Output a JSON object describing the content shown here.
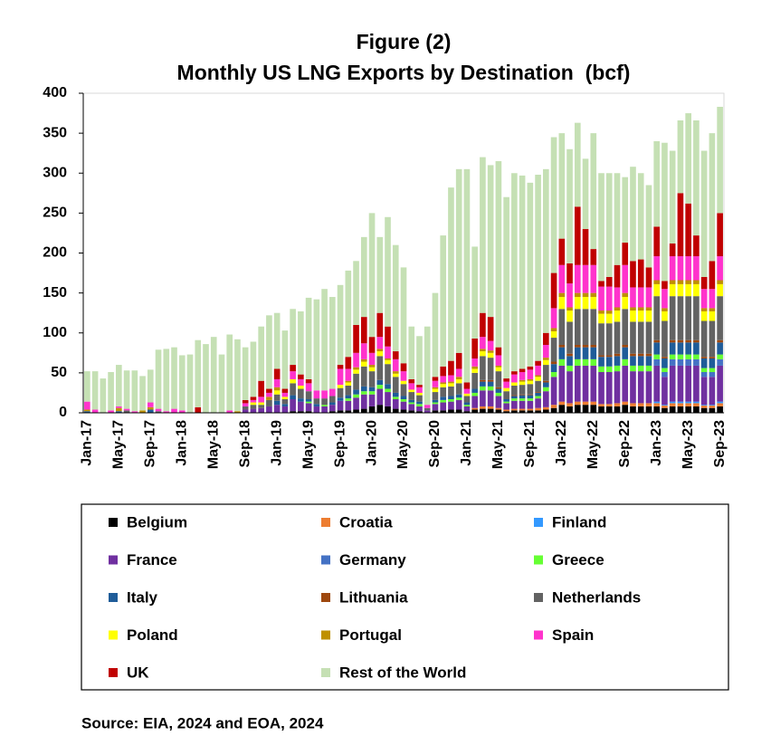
{
  "chart_data": {
    "type": "stacked_bar",
    "title": "Figure (2)",
    "subtitle": "Monthly US LNG Exports by Destination  (bcf)",
    "source": "Source: EIA, 2024 and EOA, 2024",
    "ylim": [
      0,
      400
    ],
    "yticks": [
      0,
      50,
      100,
      150,
      200,
      250,
      300,
      350,
      400
    ],
    "categories": [
      "Jan-17",
      null,
      null,
      null,
      "May-17",
      null,
      null,
      null,
      "Sep-17",
      null,
      null,
      null,
      "Jan-18",
      null,
      null,
      null,
      "May-18",
      null,
      null,
      null,
      "Sep-18",
      null,
      null,
      null,
      "Jan-19",
      null,
      null,
      null,
      "May-19",
      null,
      null,
      null,
      "Sep-19",
      null,
      null,
      null,
      "Jan-20",
      null,
      null,
      null,
      "May-20",
      null,
      null,
      null,
      "Sep-20",
      null,
      null,
      null,
      "Jan-21",
      null,
      null,
      null,
      "May-21",
      null,
      null,
      null,
      "Sep-21",
      null,
      null,
      null,
      "Jan-22",
      null,
      null,
      null,
      "May-22",
      null,
      null,
      null,
      "Sep-22",
      null,
      null,
      null,
      "Jan-23",
      null,
      null,
      null,
      "May-23",
      null,
      null,
      null,
      "Sep-23"
    ],
    "series": [
      {
        "name": "Belgium",
        "color": "#000000",
        "values": [
          0,
          0,
          0,
          0,
          0,
          0,
          0,
          0,
          0,
          0,
          0,
          0,
          0,
          0,
          0,
          0,
          0,
          0,
          0,
          0,
          0,
          0,
          0,
          0,
          0,
          0,
          2,
          2,
          2,
          0,
          0,
          2,
          3,
          3,
          4,
          5,
          8,
          10,
          8,
          5,
          4,
          3,
          2,
          0,
          3,
          3,
          4,
          4,
          2,
          4,
          5,
          5,
          4,
          2,
          3,
          3,
          3,
          3,
          4,
          6,
          10,
          8,
          10,
          10,
          10,
          8,
          8,
          8,
          10,
          8,
          8,
          8,
          8,
          6,
          8,
          8,
          8,
          8,
          6,
          6,
          8
        ]
      },
      {
        "name": "Croatia",
        "color": "#ED7D31",
        "values": [
          0,
          0,
          0,
          0,
          0,
          0,
          0,
          0,
          0,
          0,
          0,
          0,
          0,
          0,
          0,
          0,
          0,
          0,
          0,
          0,
          0,
          0,
          0,
          0,
          0,
          0,
          0,
          0,
          0,
          0,
          0,
          0,
          0,
          0,
          0,
          0,
          0,
          0,
          0,
          0,
          0,
          0,
          0,
          0,
          0,
          0,
          0,
          0,
          0,
          2,
          3,
          3,
          2,
          2,
          2,
          2,
          2,
          3,
          3,
          4,
          4,
          4,
          4,
          4,
          4,
          3,
          3,
          4,
          4,
          4,
          4,
          4,
          4,
          3,
          4,
          4,
          4,
          4,
          3,
          3,
          4
        ]
      },
      {
        "name": "Finland",
        "color": "#3399FF",
        "values": [
          0,
          0,
          0,
          0,
          0,
          0,
          0,
          0,
          0,
          0,
          0,
          0,
          0,
          0,
          0,
          0,
          0,
          0,
          0,
          0,
          0,
          0,
          0,
          0,
          0,
          0,
          0,
          0,
          0,
          0,
          0,
          0,
          0,
          0,
          0,
          0,
          0,
          0,
          0,
          0,
          0,
          0,
          0,
          0,
          0,
          0,
          0,
          0,
          0,
          0,
          0,
          0,
          0,
          0,
          0,
          0,
          0,
          0,
          0,
          0,
          0,
          0,
          0,
          0,
          0,
          0,
          0,
          0,
          0,
          0,
          0,
          0,
          2,
          1,
          2,
          2,
          2,
          2,
          1,
          1,
          2
        ]
      },
      {
        "name": "France",
        "color": "#7030A0",
        "values": [
          0,
          0,
          0,
          0,
          0,
          0,
          0,
          0,
          0,
          0,
          0,
          0,
          0,
          0,
          0,
          0,
          0,
          0,
          0,
          0,
          4,
          5,
          6,
          8,
          10,
          8,
          15,
          12,
          10,
          8,
          8,
          8,
          12,
          12,
          15,
          18,
          15,
          20,
          18,
          12,
          10,
          8,
          6,
          3,
          8,
          10,
          10,
          12,
          6,
          15,
          20,
          20,
          15,
          8,
          10,
          10,
          10,
          12,
          20,
          35,
          45,
          40,
          45,
          45,
          45,
          40,
          40,
          40,
          45,
          40,
          40,
          40,
          45,
          35,
          45,
          45,
          45,
          45,
          35,
          35,
          45
        ]
      },
      {
        "name": "Germany",
        "color": "#4472C4",
        "values": [
          0,
          0,
          0,
          0,
          0,
          0,
          0,
          0,
          0,
          0,
          0,
          0,
          0,
          0,
          0,
          0,
          0,
          0,
          0,
          0,
          0,
          0,
          0,
          0,
          0,
          0,
          0,
          0,
          0,
          0,
          0,
          0,
          0,
          0,
          0,
          0,
          0,
          0,
          0,
          0,
          0,
          0,
          0,
          0,
          0,
          0,
          0,
          0,
          0,
          0,
          0,
          0,
          0,
          0,
          0,
          0,
          0,
          0,
          0,
          0,
          0,
          0,
          0,
          0,
          0,
          0,
          0,
          0,
          0,
          0,
          0,
          0,
          8,
          6,
          8,
          8,
          8,
          8,
          6,
          6,
          8
        ]
      },
      {
        "name": "Greece",
        "color": "#66FF33",
        "values": [
          0,
          0,
          0,
          0,
          0,
          0,
          0,
          0,
          0,
          0,
          0,
          0,
          0,
          0,
          0,
          0,
          0,
          0,
          0,
          0,
          0,
          0,
          0,
          0,
          0,
          0,
          0,
          0,
          2,
          0,
          2,
          0,
          0,
          3,
          4,
          4,
          4,
          5,
          4,
          3,
          3,
          2,
          3,
          0,
          2,
          3,
          3,
          3,
          2,
          4,
          5,
          5,
          4,
          2,
          3,
          3,
          3,
          3,
          5,
          6,
          8,
          7,
          8,
          8,
          8,
          7,
          7,
          7,
          8,
          7,
          7,
          7,
          6,
          5,
          6,
          6,
          6,
          6,
          5,
          5,
          6
        ]
      },
      {
        "name": "Italy",
        "color": "#1F5C99",
        "values": [
          2,
          0,
          0,
          0,
          2,
          0,
          0,
          0,
          4,
          0,
          0,
          0,
          0,
          0,
          0,
          0,
          0,
          0,
          0,
          0,
          0,
          0,
          0,
          0,
          5,
          3,
          5,
          4,
          3,
          3,
          0,
          3,
          4,
          4,
          6,
          6,
          5,
          6,
          6,
          5,
          4,
          3,
          3,
          0,
          3,
          4,
          4,
          4,
          3,
          5,
          6,
          6,
          5,
          3,
          3,
          4,
          4,
          4,
          6,
          10,
          15,
          12,
          15,
          15,
          15,
          12,
          12,
          12,
          15,
          12,
          12,
          12,
          15,
          12,
          15,
          15,
          15,
          15,
          12,
          12,
          15
        ]
      },
      {
        "name": "Lithuania",
        "color": "#9E480E",
        "values": [
          0,
          0,
          0,
          0,
          0,
          0,
          0,
          0,
          0,
          0,
          0,
          0,
          0,
          0,
          0,
          0,
          0,
          0,
          0,
          0,
          0,
          0,
          0,
          0,
          0,
          0,
          0,
          0,
          0,
          0,
          0,
          0,
          0,
          0,
          0,
          0,
          0,
          0,
          0,
          0,
          0,
          0,
          0,
          0,
          0,
          0,
          0,
          0,
          0,
          0,
          2,
          2,
          2,
          0,
          1,
          1,
          1,
          1,
          2,
          3,
          3,
          3,
          3,
          3,
          3,
          2,
          2,
          3,
          3,
          3,
          3,
          3,
          3,
          2,
          3,
          3,
          3,
          3,
          2,
          2,
          3
        ]
      },
      {
        "name": "Netherlands",
        "color": "#636363",
        "values": [
          0,
          0,
          0,
          0,
          0,
          3,
          0,
          0,
          0,
          2,
          0,
          0,
          0,
          0,
          0,
          0,
          0,
          0,
          0,
          0,
          4,
          5,
          4,
          8,
          8,
          6,
          15,
          12,
          10,
          7,
          8,
          8,
          12,
          12,
          20,
          25,
          20,
          30,
          25,
          20,
          15,
          10,
          8,
          3,
          10,
          12,
          12,
          14,
          8,
          20,
          30,
          28,
          20,
          10,
          12,
          12,
          13,
          14,
          20,
          30,
          45,
          40,
          45,
          45,
          45,
          40,
          40,
          40,
          45,
          40,
          40,
          40,
          55,
          45,
          55,
          55,
          55,
          55,
          45,
          45,
          55
        ]
      },
      {
        "name": "Poland",
        "color": "#FFFF00",
        "values": [
          0,
          0,
          0,
          0,
          0,
          0,
          0,
          0,
          0,
          0,
          0,
          0,
          0,
          0,
          0,
          0,
          0,
          0,
          0,
          0,
          0,
          3,
          3,
          0,
          5,
          3,
          5,
          4,
          0,
          0,
          0,
          0,
          4,
          4,
          5,
          6,
          5,
          6,
          5,
          4,
          4,
          3,
          3,
          0,
          4,
          4,
          4,
          5,
          3,
          5,
          6,
          6,
          5,
          4,
          4,
          4,
          4,
          5,
          6,
          8,
          15,
          14,
          15,
          15,
          15,
          12,
          12,
          14,
          15,
          14,
          14,
          14,
          15,
          12,
          15,
          15,
          15,
          15,
          12,
          12,
          15
        ]
      },
      {
        "name": "Portugal",
        "color": "#BF9000",
        "values": [
          2,
          0,
          0,
          0,
          4,
          0,
          0,
          3,
          3,
          0,
          0,
          0,
          0,
          0,
          0,
          0,
          0,
          0,
          0,
          2,
          0,
          0,
          0,
          4,
          4,
          0,
          0,
          0,
          0,
          0,
          0,
          0,
          0,
          2,
          3,
          3,
          3,
          3,
          2,
          3,
          0,
          0,
          0,
          0,
          2,
          2,
          2,
          3,
          0,
          3,
          3,
          3,
          2,
          0,
          0,
          2,
          2,
          2,
          3,
          4,
          5,
          4,
          5,
          5,
          5,
          4,
          4,
          4,
          5,
          4,
          4,
          4,
          5,
          4,
          5,
          5,
          5,
          5,
          4,
          4,
          5
        ]
      },
      {
        "name": "Spain",
        "color": "#FF33CC",
        "values": [
          10,
          4,
          0,
          3,
          2,
          2,
          2,
          0,
          6,
          3,
          2,
          5,
          3,
          0,
          0,
          0,
          0,
          0,
          3,
          0,
          4,
          3,
          7,
          5,
          10,
          5,
          10,
          8,
          10,
          10,
          10,
          9,
          20,
          15,
          18,
          20,
          15,
          15,
          15,
          15,
          12,
          8,
          7,
          4,
          8,
          8,
          8,
          10,
          6,
          10,
          15,
          12,
          13,
          8,
          10,
          10,
          12,
          12,
          16,
          25,
          35,
          30,
          35,
          35,
          35,
          30,
          30,
          25,
          35,
          25,
          25,
          25,
          30,
          24,
          30,
          30,
          30,
          30,
          24,
          24,
          30
        ]
      },
      {
        "name": "UK",
        "color": "#C00000",
        "values": [
          0,
          0,
          0,
          0,
          0,
          0,
          0,
          0,
          0,
          0,
          0,
          0,
          0,
          0,
          7,
          0,
          0,
          0,
          0,
          0,
          4,
          4,
          20,
          5,
          13,
          5,
          8,
          6,
          5,
          0,
          0,
          0,
          5,
          15,
          35,
          33,
          20,
          30,
          25,
          10,
          10,
          5,
          3,
          0,
          5,
          12,
          18,
          20,
          8,
          25,
          30,
          30,
          10,
          4,
          4,
          4,
          4,
          6,
          15,
          44,
          33,
          25,
          73,
          45,
          20,
          7,
          12,
          28,
          28,
          33,
          35,
          25,
          37,
          10,
          16,
          79,
          66,
          26,
          15,
          35,
          54
        ]
      },
      {
        "name": "Rest of the World",
        "color": "#C5E0B4",
        "values": [
          38,
          48,
          43,
          48,
          52,
          48,
          51,
          43,
          41,
          74,
          78,
          77,
          69,
          73,
          84,
          86,
          95,
          73,
          95,
          90,
          66,
          69,
          68,
          92,
          70,
          73,
          70,
          79,
          102,
          114,
          127,
          115,
          100,
          108,
          80,
          100,
          155,
          95,
          137,
          133,
          120,
          66,
          61,
          98,
          105,
          164,
          217,
          230,
          267,
          115,
          195,
          190,
          233,
          227,
          248,
          242,
          230,
          233,
          205,
          170,
          132,
          143,
          105,
          88,
          145,
          135,
          130,
          115,
          82,
          118,
          108,
          103,
          107,
          173,
          116,
          91,
          113,
          144,
          158,
          160,
          133
        ]
      }
    ]
  }
}
